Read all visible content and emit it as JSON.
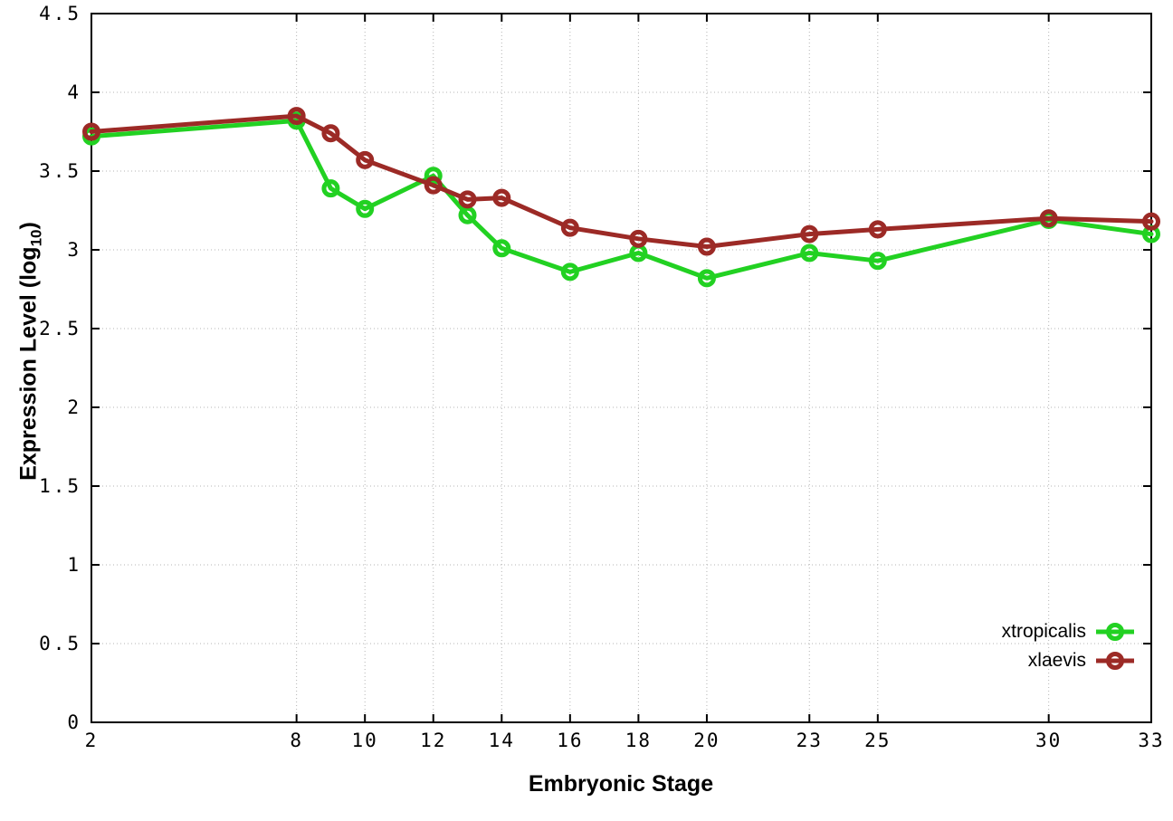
{
  "figure": {
    "background": "#ffffff",
    "grid_color": "#b4b4b4",
    "axis_color": "#000000"
  },
  "x_axis": {
    "label": "Embryonic Stage",
    "tick_labels": [
      "2",
      "8",
      "10",
      "12",
      "14",
      "16",
      "18",
      "20",
      "23",
      "25",
      "30",
      "33"
    ],
    "tick_values": [
      2,
      8,
      10,
      12,
      14,
      16,
      18,
      20,
      23,
      25,
      30,
      33
    ],
    "range": [
      2,
      33
    ]
  },
  "y_axis": {
    "label_prefix": "Expression Level (log",
    "label_sub": "10",
    "label_suffix": ")",
    "tick_labels": [
      "0",
      "0.5",
      "1",
      "1.5",
      "2",
      "2.5",
      "3",
      "3.5",
      "4",
      "4.5"
    ],
    "tick_values": [
      0,
      0.5,
      1,
      1.5,
      2,
      2.5,
      3,
      3.5,
      4,
      4.5
    ],
    "range": [
      0,
      4.5
    ]
  },
  "legend": {
    "position": "bottom-right",
    "entries": [
      {
        "label": "xtropicalis",
        "color": "#22d122"
      },
      {
        "label": "xlaevis",
        "color": "#9c2a26"
      }
    ]
  },
  "chart_data": {
    "type": "line",
    "title": "",
    "xlabel": "Embryonic Stage",
    "ylabel": "Expression Level (log10)",
    "xlim": [
      2,
      33
    ],
    "ylim": [
      0,
      4.5
    ],
    "grid": true,
    "legend_position": "bottom-right",
    "marker": "open-circle",
    "x": [
      2,
      8,
      9,
      10,
      12,
      13,
      14,
      16,
      18,
      20,
      23,
      25,
      30,
      33
    ],
    "series": [
      {
        "name": "xtropicalis",
        "color": "#22d122",
        "values": [
          3.72,
          3.82,
          3.39,
          3.26,
          3.47,
          3.22,
          3.01,
          2.86,
          2.98,
          2.82,
          2.98,
          2.93,
          3.19,
          3.1
        ]
      },
      {
        "name": "xlaevis",
        "color": "#9c2a26",
        "values": [
          3.75,
          3.85,
          3.74,
          3.57,
          3.41,
          3.32,
          3.33,
          3.14,
          3.07,
          3.02,
          3.1,
          3.13,
          3.2,
          3.18
        ]
      }
    ]
  }
}
